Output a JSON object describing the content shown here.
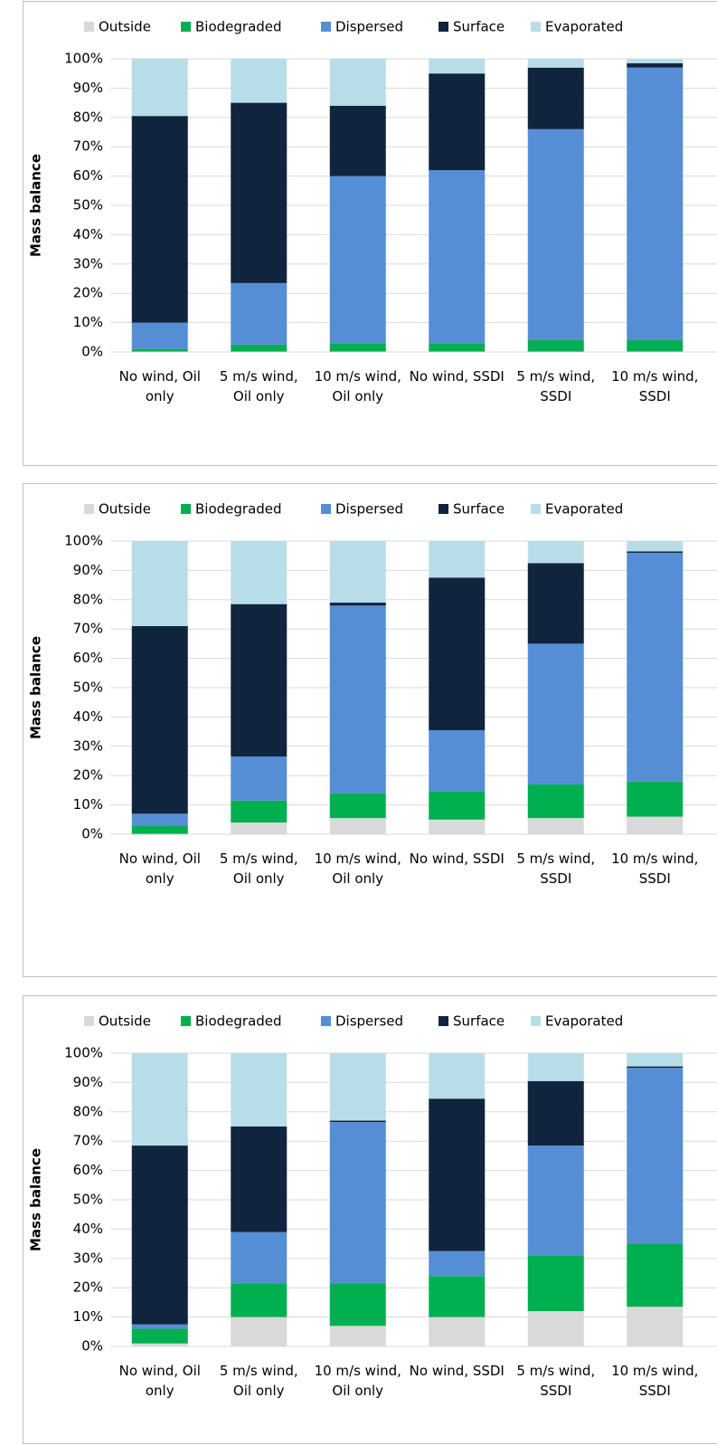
{
  "chart_data": [
    {
      "type": "bar",
      "stacked": true,
      "y_label": "Mass balance",
      "grid": true,
      "legend": "top",
      "categories": [
        "No wind, Oil only",
        "5 m/s wind, Oil only",
        "10 m/s wind, Oil only",
        "No wind, SSDI",
        "5 m/s wind, SSDI",
        "10 m/s wind, SSDI"
      ],
      "ylim": [
        0,
        100
      ],
      "yticks": [
        {
          "value": 0,
          "label": "0%"
        },
        {
          "value": 10,
          "label": "10%"
        },
        {
          "value": 20,
          "label": "20%"
        },
        {
          "value": 30,
          "label": "30%"
        },
        {
          "value": 40,
          "label": "40%"
        },
        {
          "value": 50,
          "label": "50%"
        },
        {
          "value": 60,
          "label": "60%"
        },
        {
          "value": 70,
          "label": "70%"
        },
        {
          "value": 80,
          "label": "80%"
        },
        {
          "value": 90,
          "label": "90%"
        },
        {
          "value": 100,
          "label": "100%"
        }
      ],
      "series": [
        {
          "name": "Outside",
          "color": "#d9d9d9",
          "values": [
            0,
            0,
            0,
            0,
            0,
            0
          ]
        },
        {
          "name": "Biodegraded",
          "color": "#00b050",
          "values": [
            1,
            2.5,
            3,
            3,
            4,
            4
          ]
        },
        {
          "name": "Dispersed",
          "color": "#558ed5",
          "values": [
            9,
            21,
            57,
            59,
            72,
            93
          ]
        },
        {
          "name": "Surface",
          "color": "#10243e",
          "values": [
            70.5,
            61.5,
            24,
            33,
            21,
            1.5
          ]
        },
        {
          "name": "Evaporated",
          "color": "#b7dee8",
          "values": [
            19.5,
            15,
            16,
            5,
            3,
            1.5
          ]
        }
      ]
    },
    {
      "type": "bar",
      "stacked": true,
      "y_label": "Mass balance",
      "grid": true,
      "legend": "top",
      "categories": [
        "No wind, Oil only",
        "5 m/s wind, Oil only",
        "10 m/s wind, Oil only",
        "No wind, SSDI",
        "5 m/s wind, SSDI",
        "10 m/s wind, SSDI"
      ],
      "ylim": [
        0,
        100
      ],
      "yticks": [
        {
          "value": 0,
          "label": "0%"
        },
        {
          "value": 10,
          "label": "10%"
        },
        {
          "value": 20,
          "label": "20%"
        },
        {
          "value": 30,
          "label": "30%"
        },
        {
          "value": 40,
          "label": "40%"
        },
        {
          "value": 50,
          "label": "50%"
        },
        {
          "value": 60,
          "label": "60%"
        },
        {
          "value": 70,
          "label": "70%"
        },
        {
          "value": 80,
          "label": "80%"
        },
        {
          "value": 90,
          "label": "90%"
        },
        {
          "value": 100,
          "label": "100%"
        }
      ],
      "series": [
        {
          "name": "Outside",
          "color": "#d9d9d9",
          "values": [
            0,
            4,
            5.5,
            5,
            5.5,
            6
          ]
        },
        {
          "name": "Biodegraded",
          "color": "#00b050",
          "values": [
            3,
            7.5,
            8.5,
            9.5,
            11.5,
            12
          ]
        },
        {
          "name": "Dispersed",
          "color": "#558ed5",
          "values": [
            4,
            15,
            64,
            21,
            48,
            78
          ]
        },
        {
          "name": "Surface",
          "color": "#10243e",
          "values": [
            64,
            52,
            1,
            52,
            27.5,
            0.5
          ]
        },
        {
          "name": "Evaporated",
          "color": "#b7dee8",
          "values": [
            29,
            21.5,
            21,
            12.5,
            7.5,
            3.5
          ]
        }
      ]
    },
    {
      "type": "bar",
      "stacked": true,
      "y_label": "Mass balance",
      "grid": true,
      "legend": "top",
      "categories": [
        "No wind, Oil only",
        "5 m/s wind, Oil only",
        "10 m/s wind, Oil only",
        "No wind, SSDI",
        "5 m/s wind, SSDI",
        "10 m/s wind, SSDI"
      ],
      "ylim": [
        0,
        100
      ],
      "yticks": [
        {
          "value": 0,
          "label": "0%"
        },
        {
          "value": 10,
          "label": "10%"
        },
        {
          "value": 20,
          "label": "20%"
        },
        {
          "value": 30,
          "label": "30%"
        },
        {
          "value": 40,
          "label": "40%"
        },
        {
          "value": 50,
          "label": "50%"
        },
        {
          "value": 60,
          "label": "60%"
        },
        {
          "value": 70,
          "label": "70%"
        },
        {
          "value": 80,
          "label": "80%"
        },
        {
          "value": 90,
          "label": "90%"
        },
        {
          "value": 100,
          "label": "100%"
        }
      ],
      "series": [
        {
          "name": "Outside",
          "color": "#d9d9d9",
          "values": [
            1,
            10,
            7,
            10,
            12,
            13.5
          ]
        },
        {
          "name": "Biodegraded",
          "color": "#00b050",
          "values": [
            5,
            11.5,
            14.5,
            14,
            19,
            21.5
          ]
        },
        {
          "name": "Dispersed",
          "color": "#558ed5",
          "values": [
            1.5,
            17.5,
            55,
            8.5,
            37.5,
            60
          ]
        },
        {
          "name": "Surface",
          "color": "#10243e",
          "values": [
            61,
            36,
            0.5,
            52,
            22,
            0.5
          ]
        },
        {
          "name": "Evaporated",
          "color": "#b7dee8",
          "values": [
            31.5,
            25,
            23,
            15.5,
            9.5,
            4.5
          ]
        }
      ]
    }
  ]
}
